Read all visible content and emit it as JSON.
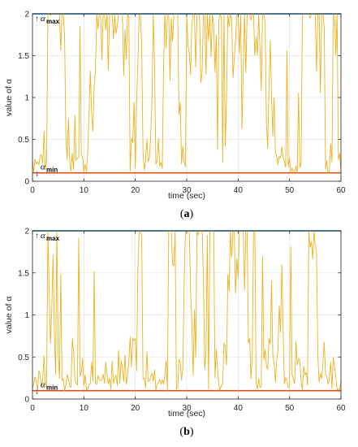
{
  "chart_data": [
    {
      "type": "line",
      "caption": {
        "open": "(",
        "letter": "a",
        "close": ")"
      },
      "xlabel": "time (sec)",
      "ylabel": "value of α",
      "xlim": [
        0,
        60
      ],
      "ylim": [
        0,
        2
      ],
      "xticks": [
        "0",
        "10",
        "20",
        "30",
        "40",
        "50",
        "60"
      ],
      "yticks": [
        "0",
        "0.5",
        "1",
        "1.5",
        "2"
      ],
      "grid": true,
      "annotations": {
        "max_label": "α",
        "max_sub": "max",
        "max_arrow": "↑",
        "min_label": "α",
        "min_sub": "min",
        "min_arrow": "↓"
      },
      "series": [
        {
          "role": "alpha_max",
          "color": "#0072BD",
          "x": [
            0,
            60
          ],
          "y": [
            2,
            2
          ]
        },
        {
          "role": "alpha_min",
          "color": "#D95319",
          "x": [
            0,
            60
          ],
          "y": [
            0.1,
            0.1
          ]
        },
        {
          "role": "alpha",
          "color": "#EDB120",
          "dt": 0.25,
          "segments": [
            [
              0,
              0.15
            ],
            [
              2,
              0.35
            ],
            [
              3,
              1.85
            ],
            [
              5.5,
              1.75
            ],
            [
              6.5,
              0.45
            ],
            [
              9,
              0.3
            ],
            [
              11,
              0.7
            ],
            [
              12.5,
              1.75
            ],
            [
              17.5,
              1.5
            ],
            [
              19,
              0.5
            ],
            [
              20.5,
              1.5
            ],
            [
              21.5,
              0.3
            ],
            [
              23,
              1.4
            ],
            [
              24,
              0.35
            ],
            [
              25.5,
              1.75
            ],
            [
              28.5,
              0.45
            ],
            [
              30,
              1.8
            ],
            [
              36.5,
              1.3
            ],
            [
              38,
              1.8
            ],
            [
              45.5,
              0.55
            ],
            [
              47.5,
              0.2
            ],
            [
              52.5,
              1.75
            ],
            [
              57,
              0.35
            ],
            [
              58.5,
              1.6
            ],
            [
              59.5,
              0.3
            ]
          ]
        }
      ]
    },
    {
      "type": "line",
      "caption": {
        "open": "(",
        "letter": "b",
        "close": ")"
      },
      "xlabel": "time (sec)",
      "ylabel": "value of α",
      "xlim": [
        0,
        60
      ],
      "ylim": [
        0,
        2
      ],
      "xticks": [
        "0",
        "10",
        "20",
        "30",
        "40",
        "50",
        "60"
      ],
      "yticks": [
        "0",
        "0.5",
        "1",
        "1.5",
        "2"
      ],
      "grid": true,
      "annotations": {
        "max_label": "α",
        "max_sub": "max",
        "max_arrow": "↑",
        "min_label": "α",
        "min_sub": "min",
        "min_arrow": "↓"
      },
      "series": [
        {
          "role": "alpha_max",
          "color": "#0072BD",
          "x": [
            0,
            60
          ],
          "y": [
            2,
            2
          ]
        },
        {
          "role": "alpha_min",
          "color": "#D95319",
          "x": [
            0,
            60
          ],
          "y": [
            0.1,
            0.1
          ]
        },
        {
          "role": "alpha",
          "color": "#EDB120",
          "dt": 0.25,
          "segments": [
            [
              0,
              0.3
            ],
            [
              3,
              1.2
            ],
            [
              5,
              0.3
            ],
            [
              12,
              0.25
            ],
            [
              16,
              0.45
            ],
            [
              20.5,
              1.9
            ],
            [
              21.5,
              0.3
            ],
            [
              26.5,
              1.9
            ],
            [
              28,
              0.3
            ],
            [
              29.5,
              1.85
            ],
            [
              31,
              0.5
            ],
            [
              32,
              1.9
            ],
            [
              33.5,
              0.4
            ],
            [
              34.5,
              1.95
            ],
            [
              35.5,
              0.4
            ],
            [
              38,
              1.8
            ],
            [
              42,
              0.6
            ],
            [
              43,
              1.8
            ],
            [
              43.5,
              0.4
            ],
            [
              45.5,
              1.2
            ],
            [
              46.5,
              0.3
            ],
            [
              48,
              0.9
            ],
            [
              49,
              0.3
            ],
            [
              51,
              1.2
            ],
            [
              52,
              0.35
            ],
            [
              53.5,
              1.5
            ],
            [
              55.5,
              0.3
            ],
            [
              59.5,
              0.2
            ]
          ]
        }
      ]
    }
  ]
}
